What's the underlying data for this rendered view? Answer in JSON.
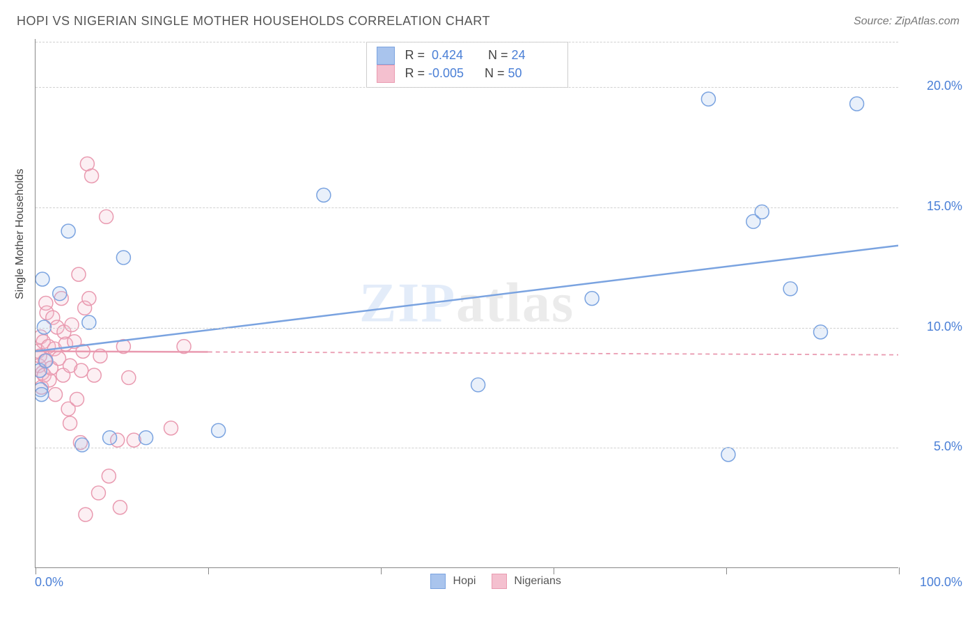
{
  "title": "HOPI VS NIGERIAN SINGLE MOTHER HOUSEHOLDS CORRELATION CHART",
  "source": "Source: ZipAtlas.com",
  "ylabel": "Single Mother Households",
  "watermark_a": "ZIP",
  "watermark_b": "atlas",
  "chart": {
    "type": "scatter",
    "xlim": [
      0,
      100
    ],
    "ylim": [
      0,
      22
    ],
    "y_ticks": [
      5,
      10,
      15,
      20
    ],
    "y_tick_labels": [
      "5.0%",
      "10.0%",
      "15.0%",
      "20.0%"
    ],
    "x_min_label": "0.0%",
    "x_max_label": "100.0%",
    "x_ticks": [
      0,
      20,
      40,
      60,
      80,
      100
    ],
    "grid_color": "#d0d0d0",
    "axis_color": "#888888",
    "label_color": "#4a7fd6",
    "background_color": "#ffffff",
    "marker_radius": 10,
    "marker_stroke_width": 1.5,
    "marker_fill_opacity": 0.25,
    "line_width": 2.5,
    "title_fontsize": 18,
    "label_fontsize": 16,
    "tick_fontsize": 18
  },
  "series": {
    "hopi": {
      "label": "Hopi",
      "color_stroke": "#7aa3e0",
      "color_fill": "#a9c4ed",
      "R": "0.424",
      "N": "24",
      "trend": {
        "x1": 0,
        "y1": 9.0,
        "x2": 100,
        "y2": 13.4,
        "solid_to_x": 100
      },
      "points": [
        [
          0.5,
          8.2
        ],
        [
          0.6,
          7.4
        ],
        [
          0.7,
          7.2
        ],
        [
          0.8,
          12.0
        ],
        [
          1.0,
          10.0
        ],
        [
          1.2,
          8.6
        ],
        [
          2.8,
          11.4
        ],
        [
          3.8,
          14.0
        ],
        [
          5.4,
          5.1
        ],
        [
          6.2,
          10.2
        ],
        [
          8.6,
          5.4
        ],
        [
          10.2,
          12.9
        ],
        [
          12.8,
          5.4
        ],
        [
          21.2,
          5.7
        ],
        [
          33.4,
          15.5
        ],
        [
          51.3,
          7.6
        ],
        [
          64.5,
          11.2
        ],
        [
          78.0,
          19.5
        ],
        [
          80.3,
          4.7
        ],
        [
          83.2,
          14.4
        ],
        [
          84.2,
          14.8
        ],
        [
          87.5,
          11.6
        ],
        [
          91.0,
          9.8
        ],
        [
          95.2,
          19.3
        ]
      ]
    },
    "nigerians": {
      "label": "Nigerians",
      "color_stroke": "#e99ab0",
      "color_fill": "#f4c0cf",
      "R": "-0.005",
      "N": "50",
      "trend": {
        "x1": 0,
        "y1": 9.0,
        "x2": 100,
        "y2": 8.85,
        "solid_to_x": 20
      },
      "points": [
        [
          0.3,
          9.0
        ],
        [
          0.4,
          8.4
        ],
        [
          0.5,
          8.8
        ],
        [
          0.6,
          9.6
        ],
        [
          0.7,
          7.5
        ],
        [
          0.8,
          8.1
        ],
        [
          0.9,
          9.4
        ],
        [
          1.0,
          8.0
        ],
        [
          1.1,
          8.6
        ],
        [
          1.2,
          11.0
        ],
        [
          1.3,
          10.6
        ],
        [
          1.5,
          9.2
        ],
        [
          1.6,
          7.8
        ],
        [
          1.8,
          8.3
        ],
        [
          2.0,
          10.4
        ],
        [
          2.2,
          9.1
        ],
        [
          2.3,
          7.2
        ],
        [
          2.5,
          10.0
        ],
        [
          2.7,
          8.7
        ],
        [
          3.0,
          11.2
        ],
        [
          3.2,
          8.0
        ],
        [
          3.3,
          9.8
        ],
        [
          3.5,
          9.3
        ],
        [
          3.8,
          6.6
        ],
        [
          4.0,
          8.4
        ],
        [
          4.2,
          10.1
        ],
        [
          4.5,
          9.4
        ],
        [
          4.8,
          7.0
        ],
        [
          5.0,
          12.2
        ],
        [
          5.3,
          8.2
        ],
        [
          5.5,
          9.0
        ],
        [
          5.7,
          10.8
        ],
        [
          5.8,
          2.2
        ],
        [
          6.0,
          16.8
        ],
        [
          6.2,
          11.2
        ],
        [
          6.5,
          16.3
        ],
        [
          6.8,
          8.0
        ],
        [
          7.3,
          3.1
        ],
        [
          7.5,
          8.8
        ],
        [
          8.2,
          14.6
        ],
        [
          8.5,
          3.8
        ],
        [
          9.5,
          5.3
        ],
        [
          9.8,
          2.5
        ],
        [
          10.2,
          9.2
        ],
        [
          10.8,
          7.9
        ],
        [
          11.4,
          5.3
        ],
        [
          15.7,
          5.8
        ],
        [
          17.2,
          9.2
        ],
        [
          5.2,
          5.2
        ],
        [
          4.0,
          6.0
        ]
      ]
    }
  },
  "legend_labels": {
    "R_prefix": "R = ",
    "N_prefix": "N = "
  }
}
